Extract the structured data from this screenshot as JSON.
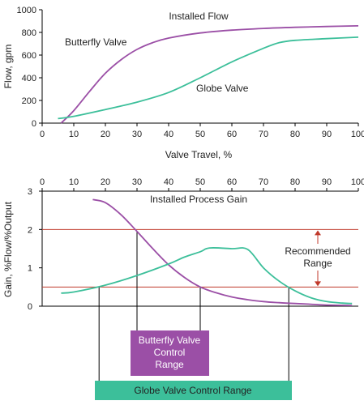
{
  "colors": {
    "butterfly": "#9b4fa6",
    "globe": "#3cbf9a",
    "limit_line": "#c0392b",
    "axis": "#000000",
    "butterfly_box": "#9b4fa6",
    "globe_box": "#3cbf9a",
    "box_text": "#ffffff"
  },
  "chart_data": [
    {
      "type": "line",
      "title": "Installed Flow",
      "xlabel": "Valve Travel, %",
      "ylabel": "Flow, gpm",
      "xlim": [
        0,
        100
      ],
      "ylim": [
        0,
        1000
      ],
      "x_ticks": [
        "0",
        "10",
        "20",
        "30",
        "40",
        "50",
        "60",
        "70",
        "80",
        "90",
        "100"
      ],
      "y_ticks": [
        "0",
        "200",
        "400",
        "600",
        "800",
        "1000"
      ],
      "grid": false,
      "series": [
        {
          "name": "Butterfly Valve",
          "x": [
            6,
            10,
            15,
            20,
            25,
            30,
            35,
            40,
            50,
            60,
            70,
            80,
            90,
            100
          ],
          "y": [
            0,
            110,
            280,
            440,
            560,
            650,
            710,
            750,
            795,
            820,
            835,
            845,
            852,
            858
          ]
        },
        {
          "name": "Globe Valve",
          "x": [
            5,
            10,
            20,
            30,
            40,
            50,
            60,
            70,
            75,
            80,
            90,
            100
          ],
          "y": [
            40,
            60,
            120,
            185,
            270,
            400,
            540,
            660,
            710,
            730,
            745,
            758
          ]
        }
      ]
    },
    {
      "type": "line",
      "title": "Installed Process Gain",
      "ylabel": "Gain, %Flow/%Output",
      "xlim": [
        0,
        100
      ],
      "ylim": [
        0,
        3
      ],
      "x_ticks": [
        "0",
        "10",
        "20",
        "30",
        "40",
        "50",
        "60",
        "70",
        "80",
        "90",
        "100"
      ],
      "y_ticks": [
        "0",
        "1",
        "2",
        "3"
      ],
      "grid": false,
      "series": [
        {
          "name": "Butterfly",
          "x": [
            16,
            20,
            25,
            30,
            35,
            40,
            45,
            50,
            55,
            60,
            65,
            70,
            75,
            80,
            85,
            90,
            98
          ],
          "y": [
            2.78,
            2.7,
            2.38,
            1.95,
            1.5,
            1.08,
            0.75,
            0.5,
            0.35,
            0.24,
            0.17,
            0.12,
            0.09,
            0.07,
            0.05,
            0.03,
            0.02
          ]
        },
        {
          "name": "Globe",
          "x": [
            6,
            10,
            20,
            30,
            40,
            45,
            50,
            53,
            60,
            65,
            70,
            75,
            80,
            85,
            90,
            95,
            98
          ],
          "y": [
            0.34,
            0.37,
            0.55,
            0.8,
            1.1,
            1.28,
            1.42,
            1.52,
            1.5,
            1.48,
            1.0,
            0.65,
            0.4,
            0.22,
            0.12,
            0.08,
            0.07
          ]
        }
      ],
      "reference_lines": [
        0.5,
        2.0
      ],
      "annotations": {
        "recommended_range": "Recommended\nRange",
        "butterfly_range_label": "Butterfly Valve\nControl\nRange",
        "globe_range_label": "Globe Valve Control Range"
      },
      "butterfly_range_x": [
        30,
        50
      ],
      "globe_range_x": [
        18,
        78
      ]
    }
  ]
}
